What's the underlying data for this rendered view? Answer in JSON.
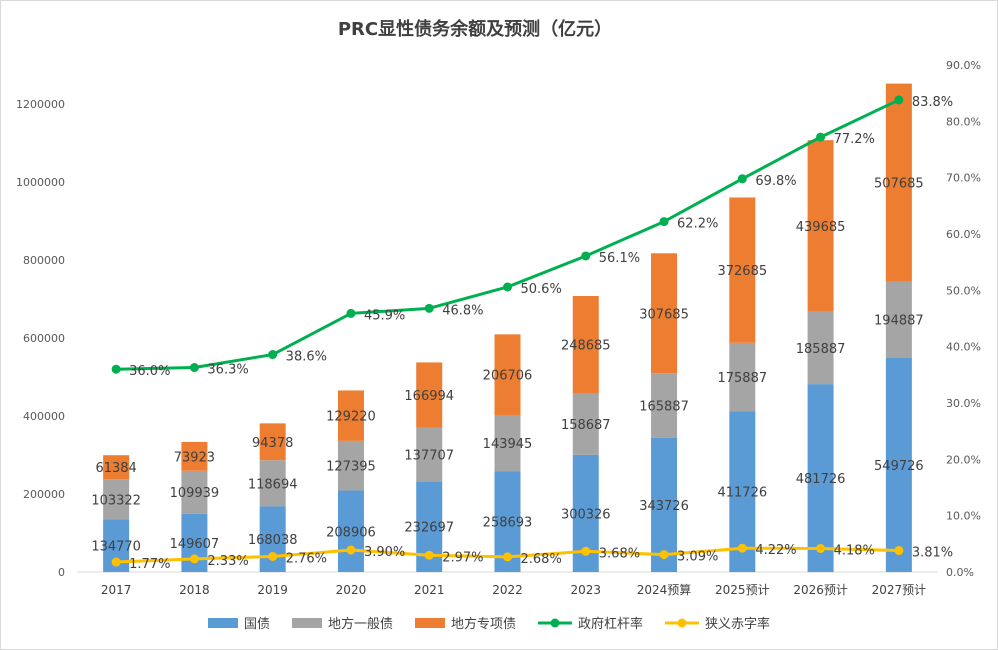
{
  "chart_data": {
    "type": "bar",
    "stacked": true,
    "title": "PRC显性债务余额及预测（亿元）",
    "categories": [
      "2017",
      "2018",
      "2019",
      "2020",
      "2021",
      "2022",
      "2023",
      "2024预算",
      "2025预计",
      "2026预计",
      "2027预计"
    ],
    "series": [
      {
        "name": "国债",
        "type": "bar",
        "axis": "left",
        "color": "#5B9BD5",
        "values": [
          134770,
          149607,
          168038,
          208906,
          232697,
          258693,
          300326,
          343726,
          411726,
          481726,
          549726
        ]
      },
      {
        "name": "地方一般债",
        "type": "bar",
        "axis": "left",
        "color": "#A5A5A5",
        "values": [
          103322,
          109939,
          118694,
          127395,
          137707,
          143945,
          158687,
          165887,
          175887,
          185887,
          194887
        ]
      },
      {
        "name": "地方专项债",
        "type": "bar",
        "axis": "left",
        "color": "#ED7D31",
        "values": [
          61384,
          73923,
          94378,
          129220,
          166994,
          206706,
          248685,
          307685,
          372685,
          439685,
          507685
        ]
      },
      {
        "name": "政府杠杆率",
        "type": "line",
        "axis": "right",
        "color": "#00B050",
        "values": [
          36.0,
          36.3,
          38.6,
          45.9,
          46.8,
          50.6,
          56.1,
          62.2,
          69.8,
          77.2,
          83.8
        ],
        "labels": [
          "36.0%",
          "36.3%",
          "38.6%",
          "45.9%",
          "46.8%",
          "50.6%",
          "56.1%",
          "62.2%",
          "69.8%",
          "77.2%",
          "83.8%"
        ]
      },
      {
        "name": "狭义赤字率",
        "type": "line",
        "axis": "right",
        "color": "#FFC000",
        "values": [
          1.77,
          2.33,
          2.76,
          3.9,
          2.97,
          2.68,
          3.68,
          3.09,
          4.22,
          4.18,
          3.81
        ],
        "labels": [
          "1.77%",
          "2.33%",
          "2.76%",
          "3.90%",
          "2.97%",
          "2.68%",
          "3.68%",
          "3.09%",
          "4.22%",
          "4.18%",
          "3.81%"
        ]
      }
    ],
    "y_left": {
      "min": 0,
      "max": 1300000,
      "ticks": [
        0,
        200000,
        400000,
        600000,
        800000,
        1000000,
        1200000
      ],
      "tick_labels": [
        "0",
        "200000",
        "400000",
        "600000",
        "800000",
        "1000000",
        "1200000"
      ]
    },
    "y_right": {
      "min": 0,
      "max": 90,
      "ticks": [
        0,
        10,
        20,
        30,
        40,
        50,
        60,
        70,
        80,
        90
      ],
      "tick_labels": [
        "0.0%",
        "10.0%",
        "20.0%",
        "30.0%",
        "40.0%",
        "50.0%",
        "60.0%",
        "70.0%",
        "80.0%",
        "90.0%"
      ]
    },
    "grid": false,
    "legend": "bottom"
  }
}
